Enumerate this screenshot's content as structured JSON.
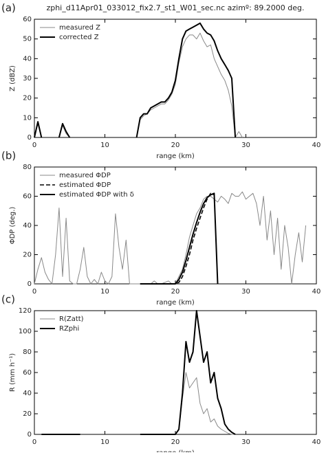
{
  "chart_data": [
    {
      "type": "line",
      "label": "(a)",
      "title": "zphi_d11Apr01_033012_fix2.7_st1_W01_sec.nc azimº: 89.2000 deg.",
      "x_label": "range (km)",
      "y_label": "Z (dBZ)",
      "xlim": [
        0,
        40
      ],
      "xticks": [
        0,
        10,
        20,
        30,
        40
      ],
      "ylim": [
        0,
        60
      ],
      "yticks": [
        0,
        10,
        20,
        30,
        40,
        50,
        60
      ],
      "x": [
        0,
        0.5,
        1,
        1.5,
        2,
        2.5,
        3,
        3.5,
        4,
        4.5,
        5,
        5.5,
        6,
        6.5,
        7,
        7.5,
        8,
        8.5,
        9,
        9.5,
        10,
        10.5,
        11,
        11.5,
        12,
        12.5,
        13,
        13.5,
        14,
        14.5,
        15,
        15.5,
        16,
        16.5,
        17,
        17.5,
        18,
        18.5,
        19,
        19.5,
        20,
        20.5,
        21,
        21.5,
        22,
        22.5,
        23,
        23.5,
        24,
        24.5,
        25,
        25.5,
        26,
        26.5,
        27,
        27.5,
        28,
        28.5,
        29,
        29.5,
        30
      ],
      "series": [
        {
          "name": "measured Z",
          "color": "#888888",
          "line_width": 1,
          "dashed": false,
          "values": [
            0,
            7,
            0,
            null,
            null,
            null,
            null,
            0,
            6,
            2,
            0,
            null,
            null,
            null,
            null,
            null,
            null,
            null,
            null,
            null,
            null,
            null,
            null,
            null,
            null,
            null,
            null,
            null,
            null,
            0,
            9,
            11,
            12,
            14,
            15,
            16,
            17,
            17,
            19,
            22,
            27,
            38,
            46,
            50,
            52,
            52,
            50,
            53,
            49,
            46,
            47,
            40,
            36,
            32,
            29,
            24,
            16,
            0,
            3,
            0,
            null
          ]
        },
        {
          "name": "corrected Z",
          "color": "#000000",
          "line_width": 2,
          "dashed": false,
          "values": [
            0,
            8,
            0,
            null,
            null,
            null,
            null,
            0,
            7,
            3,
            0,
            null,
            null,
            null,
            null,
            null,
            null,
            null,
            null,
            null,
            null,
            null,
            null,
            null,
            null,
            null,
            null,
            null,
            null,
            0,
            10,
            12,
            12,
            15,
            16,
            17,
            18,
            18,
            20,
            23,
            29,
            40,
            50,
            54,
            55,
            56,
            57,
            58,
            55,
            53,
            52,
            49,
            44,
            40,
            37,
            34,
            30,
            0,
            null,
            null,
            null
          ]
        }
      ]
    },
    {
      "type": "line",
      "label": "(b)",
      "x_label": "range (km)",
      "y_label": "ΦDP (deg.)",
      "xlim": [
        0,
        40
      ],
      "xticks": [
        0,
        10,
        20,
        30,
        40
      ],
      "ylim": [
        0,
        80
      ],
      "yticks": [
        0,
        20,
        40,
        60,
        80
      ],
      "x": [
        0,
        0.5,
        1,
        1.5,
        2,
        2.5,
        3,
        3.5,
        4,
        4.5,
        5,
        5.5,
        6,
        6.5,
        7,
        7.5,
        8,
        8.5,
        9,
        9.5,
        10,
        10.5,
        11,
        11.5,
        12,
        12.5,
        13,
        13.5,
        14,
        14.5,
        15,
        15.5,
        16,
        16.5,
        17,
        17.5,
        18,
        18.5,
        19,
        19.5,
        20,
        20.5,
        21,
        21.5,
        22,
        22.5,
        23,
        23.5,
        24,
        24.5,
        25,
        25.5,
        26,
        26.5,
        27,
        27.5,
        28,
        28.5,
        29,
        29.5,
        30,
        30.5,
        31,
        31.5,
        32,
        32.5,
        33,
        33.5,
        34,
        34.5,
        35,
        35.5,
        36,
        36.5,
        37,
        37.5,
        38,
        38.5
      ],
      "series": [
        {
          "name": "measured ΦDP",
          "color": "#888888",
          "line_width": 1,
          "dashed": false,
          "values": [
            0,
            10,
            18,
            8,
            3,
            0,
            20,
            52,
            5,
            45,
            2,
            0,
            0,
            10,
            25,
            5,
            0,
            3,
            0,
            8,
            2,
            0,
            5,
            48,
            25,
            10,
            30,
            0,
            0,
            0,
            0,
            0,
            0,
            0,
            2,
            0,
            0,
            1,
            2,
            0,
            0,
            5,
            10,
            20,
            32,
            40,
            48,
            52,
            58,
            60,
            60,
            58,
            56,
            60,
            58,
            55,
            62,
            60,
            60,
            63,
            58,
            60,
            62,
            55,
            40,
            60,
            30,
            50,
            20,
            45,
            10,
            40,
            25,
            0,
            20,
            35,
            15,
            40
          ]
        },
        {
          "name": "estimated ΦDP",
          "color": "#000000",
          "line_width": 1.6,
          "dashed": true,
          "values": [
            null,
            null,
            null,
            null,
            null,
            null,
            null,
            null,
            null,
            null,
            null,
            null,
            null,
            null,
            null,
            null,
            null,
            null,
            null,
            null,
            null,
            null,
            null,
            null,
            null,
            null,
            null,
            null,
            null,
            null,
            0,
            0,
            0,
            0,
            0,
            0,
            0,
            0,
            0,
            0,
            0,
            1,
            5,
            12,
            20,
            30,
            38,
            45,
            52,
            58,
            62,
            61,
            null,
            null,
            null,
            null,
            null,
            null,
            null,
            null,
            null,
            null,
            null,
            null,
            null,
            null,
            null,
            null,
            null,
            null,
            null,
            null,
            null,
            null,
            null,
            null,
            null,
            null
          ]
        },
        {
          "name": "estimated ΦDP with δ",
          "color": "#000000",
          "line_width": 2,
          "dashed": false,
          "values": [
            null,
            null,
            null,
            null,
            null,
            null,
            null,
            null,
            null,
            null,
            null,
            null,
            null,
            null,
            null,
            null,
            null,
            null,
            null,
            null,
            null,
            null,
            null,
            null,
            null,
            null,
            null,
            null,
            null,
            null,
            0,
            0,
            0,
            0,
            0,
            0,
            0,
            0,
            0,
            0,
            0,
            3,
            8,
            16,
            25,
            34,
            42,
            49,
            55,
            59,
            61,
            62,
            0,
            null,
            null,
            null,
            null,
            null,
            null,
            null,
            null,
            null,
            null,
            null,
            null,
            null,
            null,
            null,
            null,
            null,
            null,
            null,
            null,
            null,
            null,
            null,
            null,
            null
          ]
        }
      ]
    },
    {
      "type": "line",
      "label": "(c)",
      "x_label": "range (km)",
      "y_label": "R (mm h⁻¹)",
      "xlim": [
        0,
        40
      ],
      "xticks": [
        0,
        10,
        20,
        30,
        40
      ],
      "ylim": [
        0,
        120
      ],
      "yticks": [
        0,
        20,
        40,
        60,
        80,
        100,
        120
      ],
      "x": [
        0,
        0.5,
        1,
        1.5,
        2,
        2.5,
        3,
        3.5,
        4,
        4.5,
        5,
        5.5,
        6,
        6.5,
        7,
        7.5,
        8,
        8.5,
        9,
        9.5,
        10,
        10.5,
        11,
        11.5,
        12,
        12.5,
        13,
        13.5,
        14,
        14.5,
        15,
        15.5,
        16,
        16.5,
        17,
        17.5,
        18,
        18.5,
        19,
        19.5,
        20,
        20.5,
        21,
        21.5,
        22,
        22.5,
        23,
        23.5,
        24,
        24.5,
        25,
        25.5,
        26,
        26.5,
        27,
        27.5,
        28,
        28.5,
        29,
        29.5,
        30
      ],
      "series": [
        {
          "name": "R(Zatt)",
          "color": "#888888",
          "line_width": 1,
          "dashed": false,
          "values": [
            null,
            null,
            0,
            0,
            0,
            0,
            0,
            0,
            0,
            0,
            0,
            0,
            0,
            0,
            null,
            null,
            null,
            null,
            null,
            null,
            null,
            null,
            null,
            null,
            null,
            null,
            null,
            null,
            null,
            null,
            0,
            0,
            0,
            0,
            0,
            0,
            0,
            0,
            0,
            0,
            0,
            4,
            35,
            60,
            45,
            50,
            55,
            30,
            20,
            25,
            12,
            15,
            8,
            5,
            3,
            1,
            0,
            0,
            null,
            null,
            null
          ]
        },
        {
          "name": "RZphi",
          "color": "#000000",
          "line_width": 2,
          "dashed": false,
          "values": [
            null,
            null,
            0,
            0,
            0,
            0,
            0,
            0,
            0,
            0,
            0,
            0,
            0,
            0,
            null,
            null,
            null,
            null,
            null,
            null,
            null,
            null,
            null,
            null,
            null,
            null,
            null,
            null,
            null,
            null,
            0,
            0,
            0,
            0,
            0,
            0,
            0,
            0,
            0,
            0,
            0,
            5,
            40,
            90,
            70,
            80,
            120,
            95,
            70,
            80,
            50,
            60,
            35,
            25,
            10,
            5,
            2,
            0,
            null,
            null,
            null
          ]
        }
      ]
    }
  ]
}
